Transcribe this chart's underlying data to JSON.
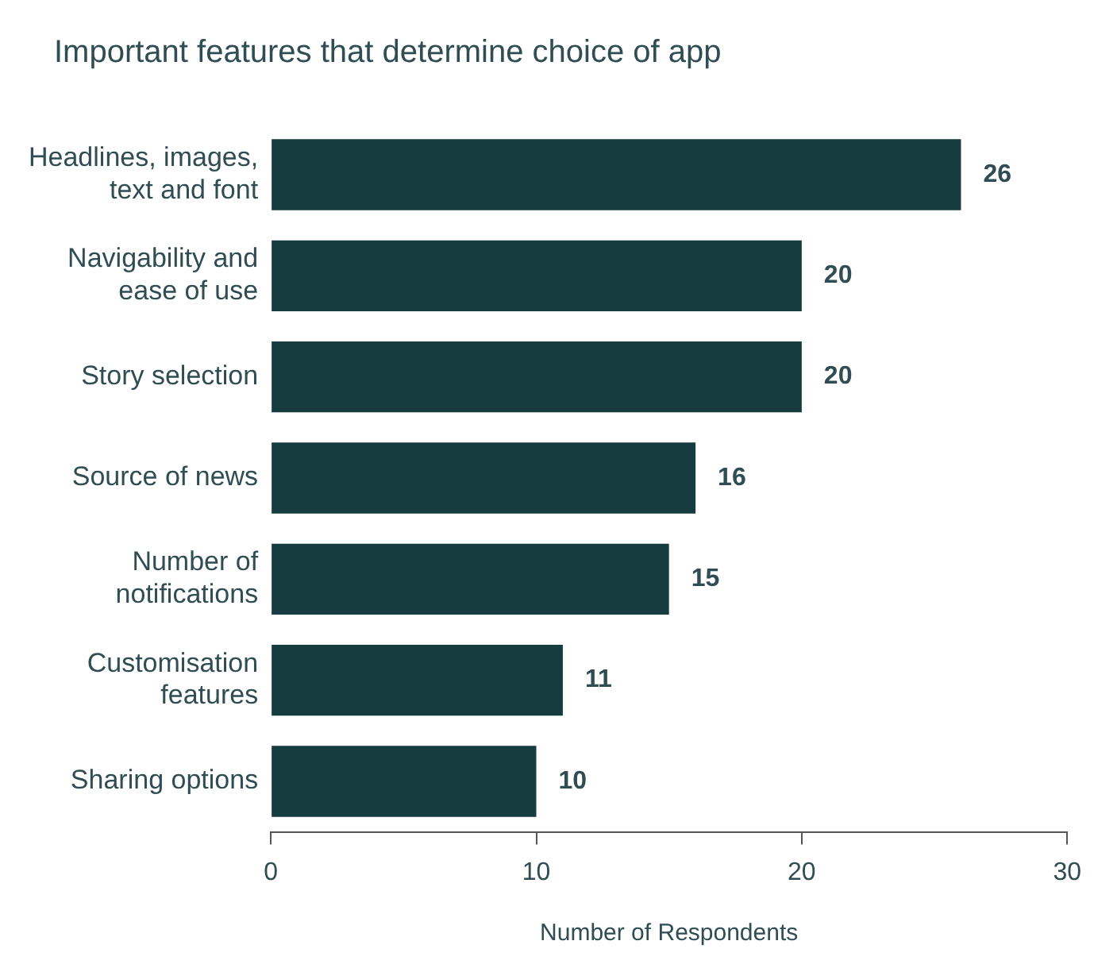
{
  "chart_data": {
    "type": "bar",
    "orientation": "horizontal",
    "title": "Important features that determine choice of app",
    "xlabel": "Number of Respondents",
    "categories": [
      "Headlines, images, text and font",
      "Navigability and ease of use",
      "Story selection",
      "Source of news",
      "Number of notifications",
      "Customisation features",
      "Sharing options"
    ],
    "values": [
      26,
      20,
      20,
      16,
      15,
      11,
      10
    ],
    "color": "#173c40",
    "xlim": [
      0,
      30
    ],
    "xticks": [
      0,
      10,
      20,
      30
    ],
    "grid": false,
    "legend": false,
    "data_labels": true
  }
}
